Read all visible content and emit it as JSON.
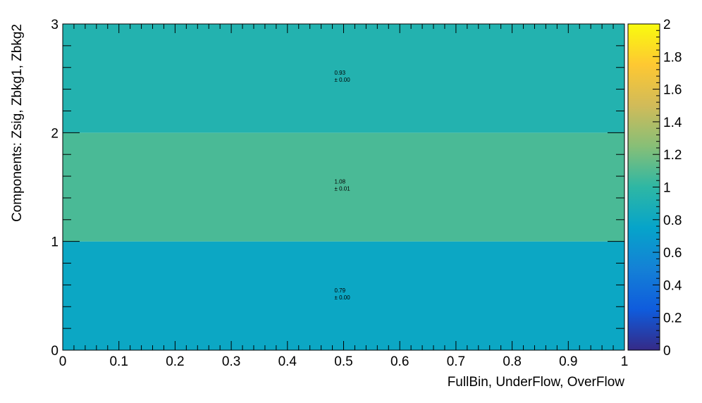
{
  "chart_data": {
    "type": "heatmap",
    "xlabel": "FullBin, UnderFlow, OverFlow",
    "ylabel": "Components: Zsig, Zbkg1, Zbkg2",
    "xlim": [
      0,
      1
    ],
    "ylim": [
      0,
      3
    ],
    "x_ticks": [
      "0",
      "0.1",
      "0.2",
      "0.3",
      "0.4",
      "0.5",
      "0.6",
      "0.7",
      "0.8",
      "0.9",
      "1"
    ],
    "y_ticks": [
      "0",
      "1",
      "2",
      "3"
    ],
    "colorbar": {
      "range": [
        0,
        2
      ],
      "ticks": [
        "0",
        "0.2",
        "0.4",
        "0.6",
        "0.8",
        "1",
        "1.2",
        "1.4",
        "1.6",
        "1.8",
        "2"
      ],
      "palette": "kBird"
    },
    "cells": [
      {
        "x": [
          0,
          1
        ],
        "y": [
          0,
          1
        ],
        "value": 0.79,
        "label": "0.79",
        "error_label": "± 0.00"
      },
      {
        "x": [
          0,
          1
        ],
        "y": [
          1,
          2
        ],
        "value": 1.08,
        "label": "1.08",
        "error_label": "± 0.01"
      },
      {
        "x": [
          0,
          1
        ],
        "y": [
          2,
          3
        ],
        "value": 0.93,
        "label": "0.93",
        "error_label": "± 0.00"
      }
    ]
  }
}
